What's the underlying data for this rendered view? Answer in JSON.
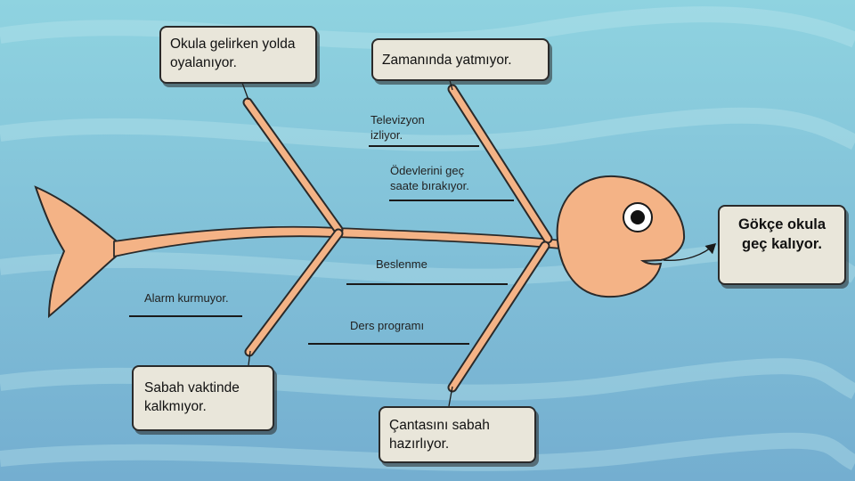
{
  "effect": {
    "text": "Gökçe okula geç kalıyor."
  },
  "causes": {
    "top_left": {
      "text": "Okula gelirken yolda oyalanıyor."
    },
    "top_right": {
      "text": "Zamanında yatmıyor."
    },
    "bottom_left": {
      "text": "Sabah vaktinde kalkmıyor."
    },
    "bottom_right": {
      "text": "Çantasını sabah hazırlıyor."
    }
  },
  "sub_causes": {
    "television": "Televizyon izliyor.",
    "homework": "Ödevlerini geç saate bırakıyor.",
    "nutrition": "Beslenme",
    "schedule": "Ders programı",
    "alarm": "Alarm kurmuyor."
  },
  "colors": {
    "background_top": "#8fd3e0",
    "background_bottom": "#74aed0",
    "fish_fill": "#f4b386",
    "fish_outline": "#2a2a2a",
    "box_fill": "#e9e6da"
  }
}
